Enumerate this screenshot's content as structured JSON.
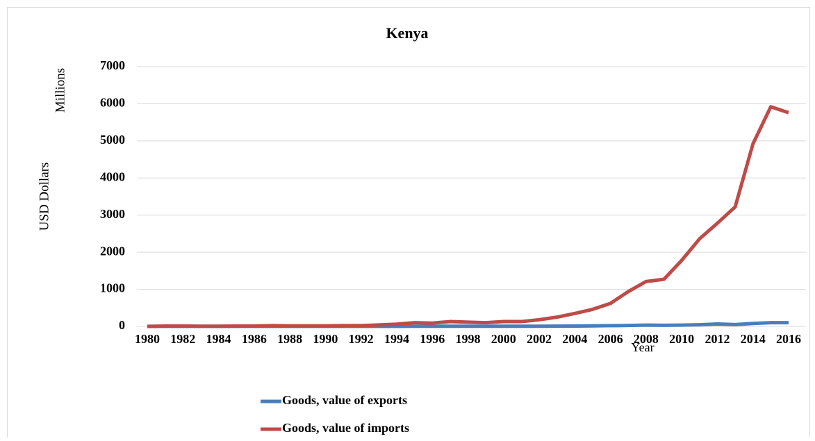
{
  "chart_data": {
    "type": "line",
    "title": "Kenya",
    "x_label": "Year",
    "y_label": "USD  Dollars",
    "y_unit_label": "Millions",
    "x": [
      1980,
      1981,
      1982,
      1983,
      1984,
      1985,
      1986,
      1987,
      1988,
      1989,
      1990,
      1991,
      1992,
      1993,
      1994,
      1995,
      1996,
      1997,
      1998,
      1999,
      2000,
      2001,
      2002,
      2003,
      2004,
      2005,
      2006,
      2007,
      2008,
      2009,
      2010,
      2011,
      2012,
      2013,
      2014,
      2015,
      2016
    ],
    "xlim": [
      1980,
      2016
    ],
    "xticks": [
      1980,
      1982,
      1984,
      1986,
      1988,
      1990,
      1992,
      1994,
      1996,
      1998,
      2000,
      2002,
      2004,
      2006,
      2008,
      2010,
      2012,
      2014,
      2016
    ],
    "ylim": [
      0,
      7000
    ],
    "yticks": [
      0,
      1000,
      2000,
      3000,
      4000,
      5000,
      6000,
      7000
    ],
    "grid": true,
    "legend": "bottom",
    "series": [
      {
        "name": "Goods, value of exports",
        "color": "#4a7ebb",
        "values": [
          2,
          2,
          2,
          2,
          2,
          2,
          2,
          3,
          3,
          3,
          3,
          3,
          3,
          3,
          3,
          4,
          4,
          4,
          4,
          4,
          5,
          5,
          5,
          6,
          10,
          15,
          20,
          25,
          35,
          30,
          35,
          45,
          65,
          50,
          80,
          100,
          100
        ]
      },
      {
        "name": "Goods, value of imports",
        "color": "#be4b48",
        "values": [
          0,
          10,
          10,
          5,
          5,
          10,
          10,
          20,
          15,
          15,
          15,
          20,
          20,
          40,
          60,
          100,
          90,
          130,
          115,
          100,
          130,
          130,
          180,
          250,
          350,
          460,
          620,
          940,
          1210,
          1270,
          1780,
          2360,
          2780,
          3220,
          4920,
          5920,
          5760
        ]
      }
    ]
  }
}
